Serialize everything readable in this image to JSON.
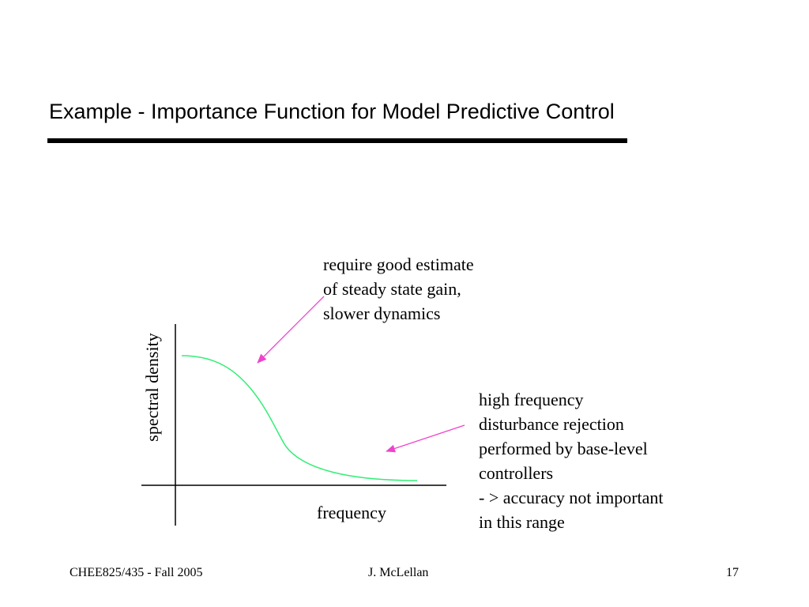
{
  "slide": {
    "title": "Example - Importance Function for Model Predictive Control"
  },
  "diagram": {
    "y_axis_label": "spectral density",
    "x_axis_label": "frequency",
    "annotation_low_frequency": [
      "require good estimate",
      "of steady state gain,",
      "slower dynamics"
    ],
    "annotation_high_frequency": [
      "high frequency",
      "disturbance rejection",
      "performed by base-level",
      "controllers",
      "- > accuracy not important",
      "in this range"
    ],
    "colors": {
      "curve": "#33ee77",
      "arrows": "#ee44cc",
      "axes": "#000000"
    }
  },
  "footer": {
    "course": "CHEE825/435 - Fall 2005",
    "author": "J. McLellan",
    "page_number": "17"
  }
}
